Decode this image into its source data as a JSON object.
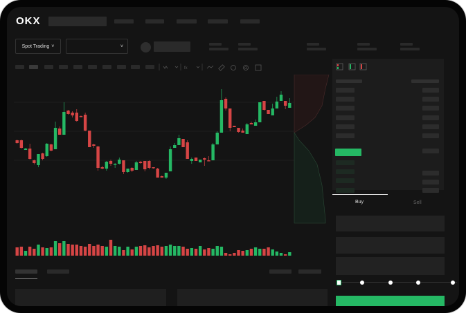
{
  "header": {
    "logo": "OKX"
  },
  "market": {
    "spot_trading_label": "Spot Trading",
    "pair_select_value": ""
  },
  "trade": {
    "tabs": [
      {
        "label": "Buy",
        "active": true
      },
      {
        "label": "Sell",
        "active": false
      }
    ],
    "leverage_slider_value": 0
  },
  "colors": {
    "up": "#25b864",
    "down": "#d64545",
    "background": "#141414"
  },
  "icons": [
    "chevron-down-icon",
    "line-tool-icon",
    "ruler-icon",
    "camera-icon",
    "settings-icon",
    "fullscreen-icon",
    "orderbook-both-icon",
    "orderbook-bids-icon",
    "orderbook-asks-icon"
  ],
  "chart_data": {
    "type": "candlestick",
    "title": "",
    "xlabel": "",
    "ylabel": "",
    "grid": true,
    "candles": [
      [
        67,
        63,
        68,
        62
      ],
      [
        67,
        56,
        68,
        55
      ],
      [
        53,
        55,
        56,
        53
      ],
      [
        55,
        40,
        62,
        39
      ],
      [
        38,
        34,
        39,
        32
      ],
      [
        31,
        47,
        47,
        28
      ],
      [
        48,
        40,
        49,
        38
      ],
      [
        44,
        62,
        63,
        43
      ],
      [
        61,
        52,
        62,
        51
      ],
      [
        54,
        85,
        94,
        54
      ],
      [
        84,
        75,
        87,
        75
      ],
      [
        75,
        108,
        122,
        75
      ],
      [
        110,
        105,
        111,
        104
      ],
      [
        107,
        103,
        109,
        100
      ],
      [
        107,
        95,
        112,
        94
      ],
      [
        102,
        101,
        103,
        101
      ],
      [
        104,
        81,
        107,
        80
      ],
      [
        81,
        57,
        81,
        57
      ],
      [
        61,
        59,
        62,
        56
      ],
      [
        58,
        27,
        59,
        23
      ],
      [
        28,
        26,
        30,
        25
      ],
      [
        26,
        36,
        37,
        23
      ],
      [
        37,
        33,
        39,
        30
      ],
      [
        32,
        33,
        34,
        27
      ],
      [
        33,
        39,
        42,
        32
      ],
      [
        38,
        21,
        38,
        18
      ],
      [
        21,
        26,
        26,
        20
      ],
      [
        27,
        23,
        28,
        21
      ],
      [
        24,
        35,
        37,
        24
      ],
      [
        36,
        34,
        37,
        33
      ],
      [
        37,
        25,
        37,
        22
      ],
      [
        37,
        27,
        38,
        25
      ],
      [
        28,
        27,
        28,
        26
      ],
      [
        26,
        13,
        27,
        13
      ],
      [
        15,
        13,
        16,
        13
      ],
      [
        13,
        20,
        20,
        11
      ],
      [
        22,
        54,
        58,
        22
      ],
      [
        56,
        60,
        63,
        56
      ],
      [
        60,
        70,
        75,
        60
      ],
      [
        69,
        57,
        69,
        57
      ],
      [
        64,
        40,
        67,
        40
      ],
      [
        37,
        40,
        42,
        33
      ],
      [
        42,
        37,
        42,
        37
      ],
      [
        35,
        39,
        39,
        35
      ],
      [
        41,
        39,
        42,
        30
      ],
      [
        38,
        37,
        44,
        37
      ],
      [
        38,
        61,
        63,
        38
      ],
      [
        61,
        78,
        80,
        61
      ],
      [
        78,
        125,
        141,
        78
      ],
      [
        127,
        113,
        129,
        110
      ],
      [
        113,
        85,
        113,
        80
      ],
      [
        88,
        86,
        88,
        86
      ],
      [
        85,
        79,
        85,
        78
      ],
      [
        81,
        78,
        84,
        78
      ],
      [
        76,
        90,
        92,
        76
      ],
      [
        92,
        90,
        94,
        90
      ],
      [
        88,
        93,
        97,
        88
      ],
      [
        93,
        122,
        122,
        93
      ],
      [
        124,
        111,
        124,
        110
      ],
      [
        111,
        105,
        111,
        105
      ],
      [
        103,
        113,
        120,
        103
      ],
      [
        113,
        123,
        130,
        113
      ],
      [
        124,
        133,
        138,
        124
      ],
      [
        124,
        117,
        124,
        112
      ],
      [
        114,
        121,
        128,
        114
      ]
    ],
    "volume": [
      14,
      15,
      9,
      15,
      12,
      18,
      14,
      13,
      14,
      23,
      20,
      23,
      19,
      18,
      18,
      16,
      15,
      19,
      16,
      18,
      16,
      15,
      25,
      16,
      15,
      10,
      15,
      11,
      15,
      16,
      17,
      14,
      16,
      17,
      15,
      16,
      18,
      16,
      16,
      15,
      12,
      13,
      12,
      16,
      11,
      13,
      12,
      16,
      15,
      6,
      4,
      6,
      10,
      9,
      10,
      12,
      14,
      12,
      12,
      14,
      11,
      8,
      6,
      4,
      7
    ]
  }
}
